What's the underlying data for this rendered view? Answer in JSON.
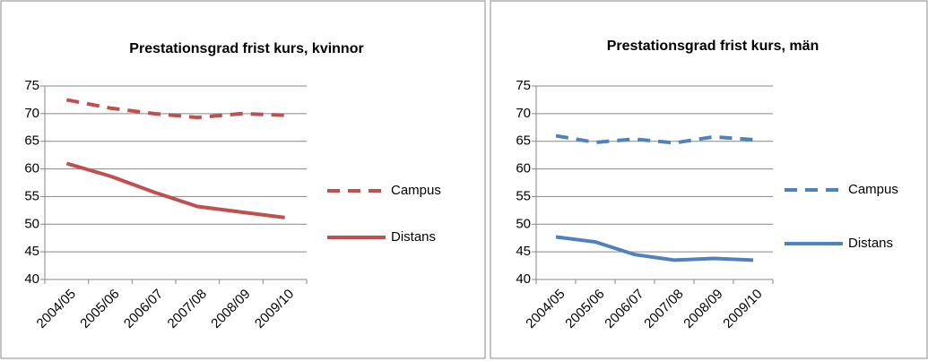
{
  "chart_data": [
    {
      "type": "line",
      "title": "Prestationsgrad frist kurs, kvinnor",
      "categories": [
        "2004/05",
        "2005/06",
        "2006/07",
        "2007/08",
        "2008/09",
        "2009/10"
      ],
      "series": [
        {
          "name": "Campus",
          "color": "#c0504d",
          "style": "dashed",
          "values": [
            72.5,
            71,
            70,
            69.3,
            70,
            69.7
          ]
        },
        {
          "name": "Distans",
          "color": "#c0504d",
          "style": "solid",
          "values": [
            61,
            58.7,
            55.8,
            53.2,
            52.2,
            51.2
          ]
        }
      ],
      "ylim": [
        40,
        75
      ],
      "yticks": [
        40,
        45,
        50,
        55,
        60,
        65,
        70,
        75
      ],
      "grid": true,
      "legend": "right"
    },
    {
      "type": "line",
      "title": "Prestationsgrad frist kurs, män",
      "categories": [
        "2004/05",
        "2005/06",
        "2006/07",
        "2007/08",
        "2008/09",
        "2009/10"
      ],
      "series": [
        {
          "name": "Campus",
          "color": "#4f81bd",
          "style": "dashed",
          "values": [
            66,
            64.8,
            65.4,
            64.7,
            65.8,
            65.3
          ]
        },
        {
          "name": "Distans",
          "color": "#4f81bd",
          "style": "solid",
          "values": [
            47.7,
            46.8,
            44.5,
            43.5,
            43.8,
            43.5
          ]
        }
      ],
      "ylim": [
        40,
        75
      ],
      "yticks": [
        40,
        45,
        50,
        55,
        60,
        65,
        70,
        75
      ],
      "grid": true,
      "legend": "right"
    }
  ]
}
